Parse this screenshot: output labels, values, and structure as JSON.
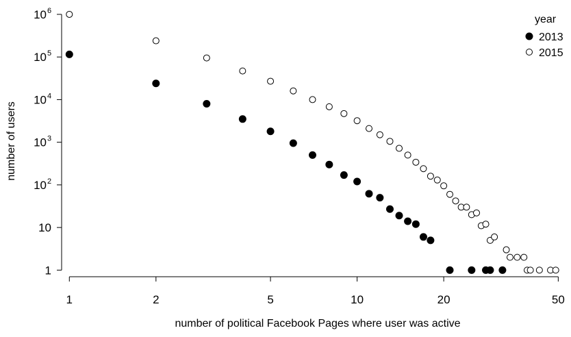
{
  "chart_data": {
    "type": "scatter",
    "title": "",
    "xlabel": "number of political Facebook Pages where user was active",
    "ylabel": "number of users",
    "x_scale": "log",
    "y_scale": "log",
    "xlim": [
      0.94,
      53
    ],
    "ylim": [
      0.7,
      1500000
    ],
    "grid": false,
    "x_ticks": [
      {
        "value": 1,
        "label": "1"
      },
      {
        "value": 2,
        "label": "2"
      },
      {
        "value": 5,
        "label": "5"
      },
      {
        "value": 10,
        "label": "10"
      },
      {
        "value": 20,
        "label": "20"
      },
      {
        "value": 50,
        "label": "50"
      }
    ],
    "y_ticks": [
      {
        "value": 1,
        "label": "1",
        "exp": ""
      },
      {
        "value": 10,
        "label": "10",
        "exp": ""
      },
      {
        "value": 100,
        "label": "10",
        "exp": "2"
      },
      {
        "value": 1000,
        "label": "10",
        "exp": "3"
      },
      {
        "value": 10000,
        "label": "10",
        "exp": "4"
      },
      {
        "value": 100000,
        "label": "10",
        "exp": "5"
      },
      {
        "value": 1000000,
        "label": "10",
        "exp": "6"
      }
    ],
    "legend": {
      "title": "year",
      "position": "top-right"
    },
    "series": [
      {
        "name": "2013",
        "marker": "filled-circle",
        "color": "#000000",
        "points": [
          [
            1,
            115000
          ],
          [
            2,
            24000
          ],
          [
            3,
            8000
          ],
          [
            4,
            3500
          ],
          [
            5,
            1800
          ],
          [
            6,
            950
          ],
          [
            7,
            500
          ],
          [
            8,
            300
          ],
          [
            9,
            170
          ],
          [
            10,
            120
          ],
          [
            11,
            62
          ],
          [
            12,
            50
          ],
          [
            13,
            27
          ],
          [
            14,
            19
          ],
          [
            15,
            14
          ],
          [
            16,
            12
          ],
          [
            17,
            6
          ],
          [
            18,
            5
          ],
          [
            21,
            1
          ],
          [
            25,
            1
          ],
          [
            28,
            1
          ],
          [
            29,
            1
          ],
          [
            32,
            1
          ]
        ]
      },
      {
        "name": "2015",
        "marker": "open-circle",
        "color": "#000000",
        "points": [
          [
            1,
            1000000
          ],
          [
            2,
            240000
          ],
          [
            3,
            95000
          ],
          [
            4,
            47000
          ],
          [
            5,
            27000
          ],
          [
            6,
            16000
          ],
          [
            7,
            10000
          ],
          [
            8,
            6800
          ],
          [
            9,
            4700
          ],
          [
            10,
            3200
          ],
          [
            11,
            2100
          ],
          [
            12,
            1500
          ],
          [
            13,
            1050
          ],
          [
            14,
            720
          ],
          [
            15,
            500
          ],
          [
            16,
            340
          ],
          [
            17,
            240
          ],
          [
            18,
            160
          ],
          [
            19,
            130
          ],
          [
            20,
            95
          ],
          [
            21,
            60
          ],
          [
            22,
            42
          ],
          [
            23,
            30
          ],
          [
            24,
            30
          ],
          [
            25,
            20
          ],
          [
            26,
            22
          ],
          [
            27,
            11
          ],
          [
            28,
            12
          ],
          [
            29,
            5
          ],
          [
            30,
            6
          ],
          [
            33,
            3
          ],
          [
            34,
            2
          ],
          [
            36,
            2
          ],
          [
            38,
            2
          ],
          [
            39,
            1
          ],
          [
            40,
            1
          ],
          [
            43,
            1
          ],
          [
            47,
            1
          ],
          [
            49,
            1
          ]
        ]
      }
    ]
  }
}
